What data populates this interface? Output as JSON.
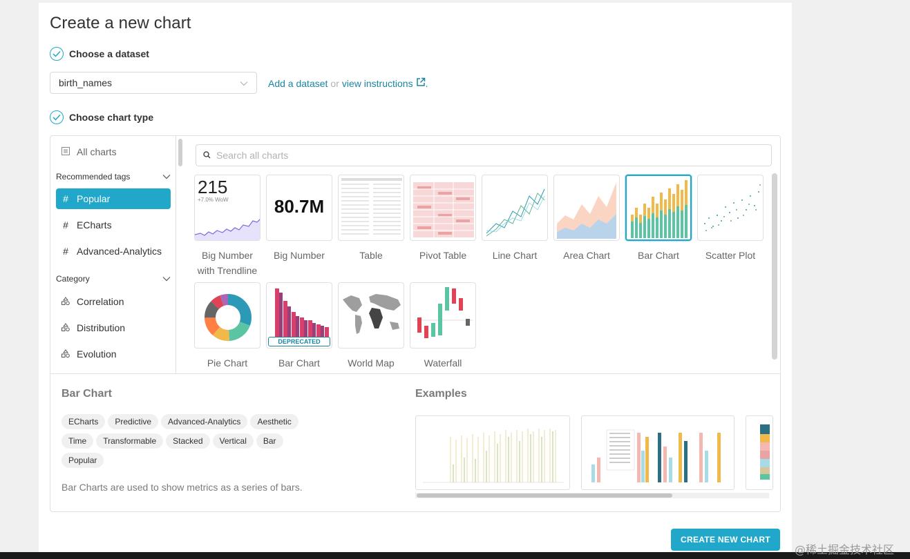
{
  "page": {
    "title": "Create a new chart"
  },
  "steps": {
    "dataset": "Choose a dataset",
    "chart_type": "Choose chart type"
  },
  "dataset": {
    "selected": "birth_names",
    "add_link": "Add a dataset",
    "or": "or",
    "instructions_link": "view instructions",
    "period": "."
  },
  "sidebar": {
    "all_charts": "All charts",
    "recommended_label": "Recommended tags",
    "recommended": [
      "Popular",
      "ECharts",
      "Advanced-Analytics"
    ],
    "category_label": "Category",
    "categories": [
      "Correlation",
      "Distribution",
      "Evolution"
    ]
  },
  "search": {
    "placeholder": "Search all charts"
  },
  "charts": [
    {
      "name": "Big Number\nwith Trendline",
      "line1": "Big Number",
      "line2": "with Trendline",
      "thumb_value": "215",
      "thumb_sub": "+7.0% WoW"
    },
    {
      "name": "Big Number",
      "thumb_value": "80.7M"
    },
    {
      "name": "Table"
    },
    {
      "name": "Pivot Table"
    },
    {
      "name": "Line Chart"
    },
    {
      "name": "Area Chart"
    },
    {
      "name": "Bar Chart"
    },
    {
      "name": "Scatter Plot"
    },
    {
      "name": "Pie Chart"
    },
    {
      "name": "Bar Chart",
      "badge": "DEPRECATED"
    },
    {
      "name": "World Map"
    },
    {
      "name": "Waterfall"
    }
  ],
  "selected_chart": {
    "title": "Bar Chart",
    "tags": [
      "ECharts",
      "Predictive",
      "Advanced-Analytics",
      "Aesthetic",
      "Time",
      "Transformable",
      "Stacked",
      "Vertical",
      "Bar",
      "Popular"
    ],
    "description": "Bar Charts are used to show metrics as a series of bars.",
    "examples_title": "Examples"
  },
  "actions": {
    "create": "CREATE NEW CHART"
  },
  "watermark": "@稀土掘金技术社区",
  "colors": {
    "accent": "#20a7c9",
    "link": "#1a85a0"
  }
}
